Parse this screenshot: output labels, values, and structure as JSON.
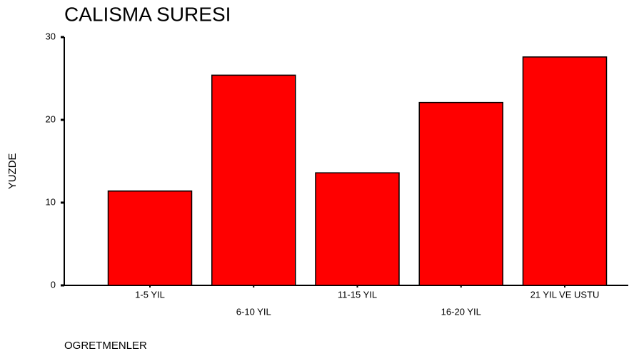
{
  "chart_data": {
    "type": "bar",
    "title": "CALISMA SURESI",
    "x_label": "OGRETMENLER",
    "y_label": "YUZDE",
    "categories": [
      "1-5 YIL",
      "6-10 YIL",
      "11-15 YIL",
      "16-20 YIL",
      "21 YIL VE USTU"
    ],
    "values": [
      11.4,
      25.4,
      13.6,
      22.1,
      27.6
    ],
    "color": "#ff0000",
    "ylim": [
      0,
      30
    ],
    "yticks": [
      0,
      10,
      20,
      30
    ],
    "grid": false
  }
}
